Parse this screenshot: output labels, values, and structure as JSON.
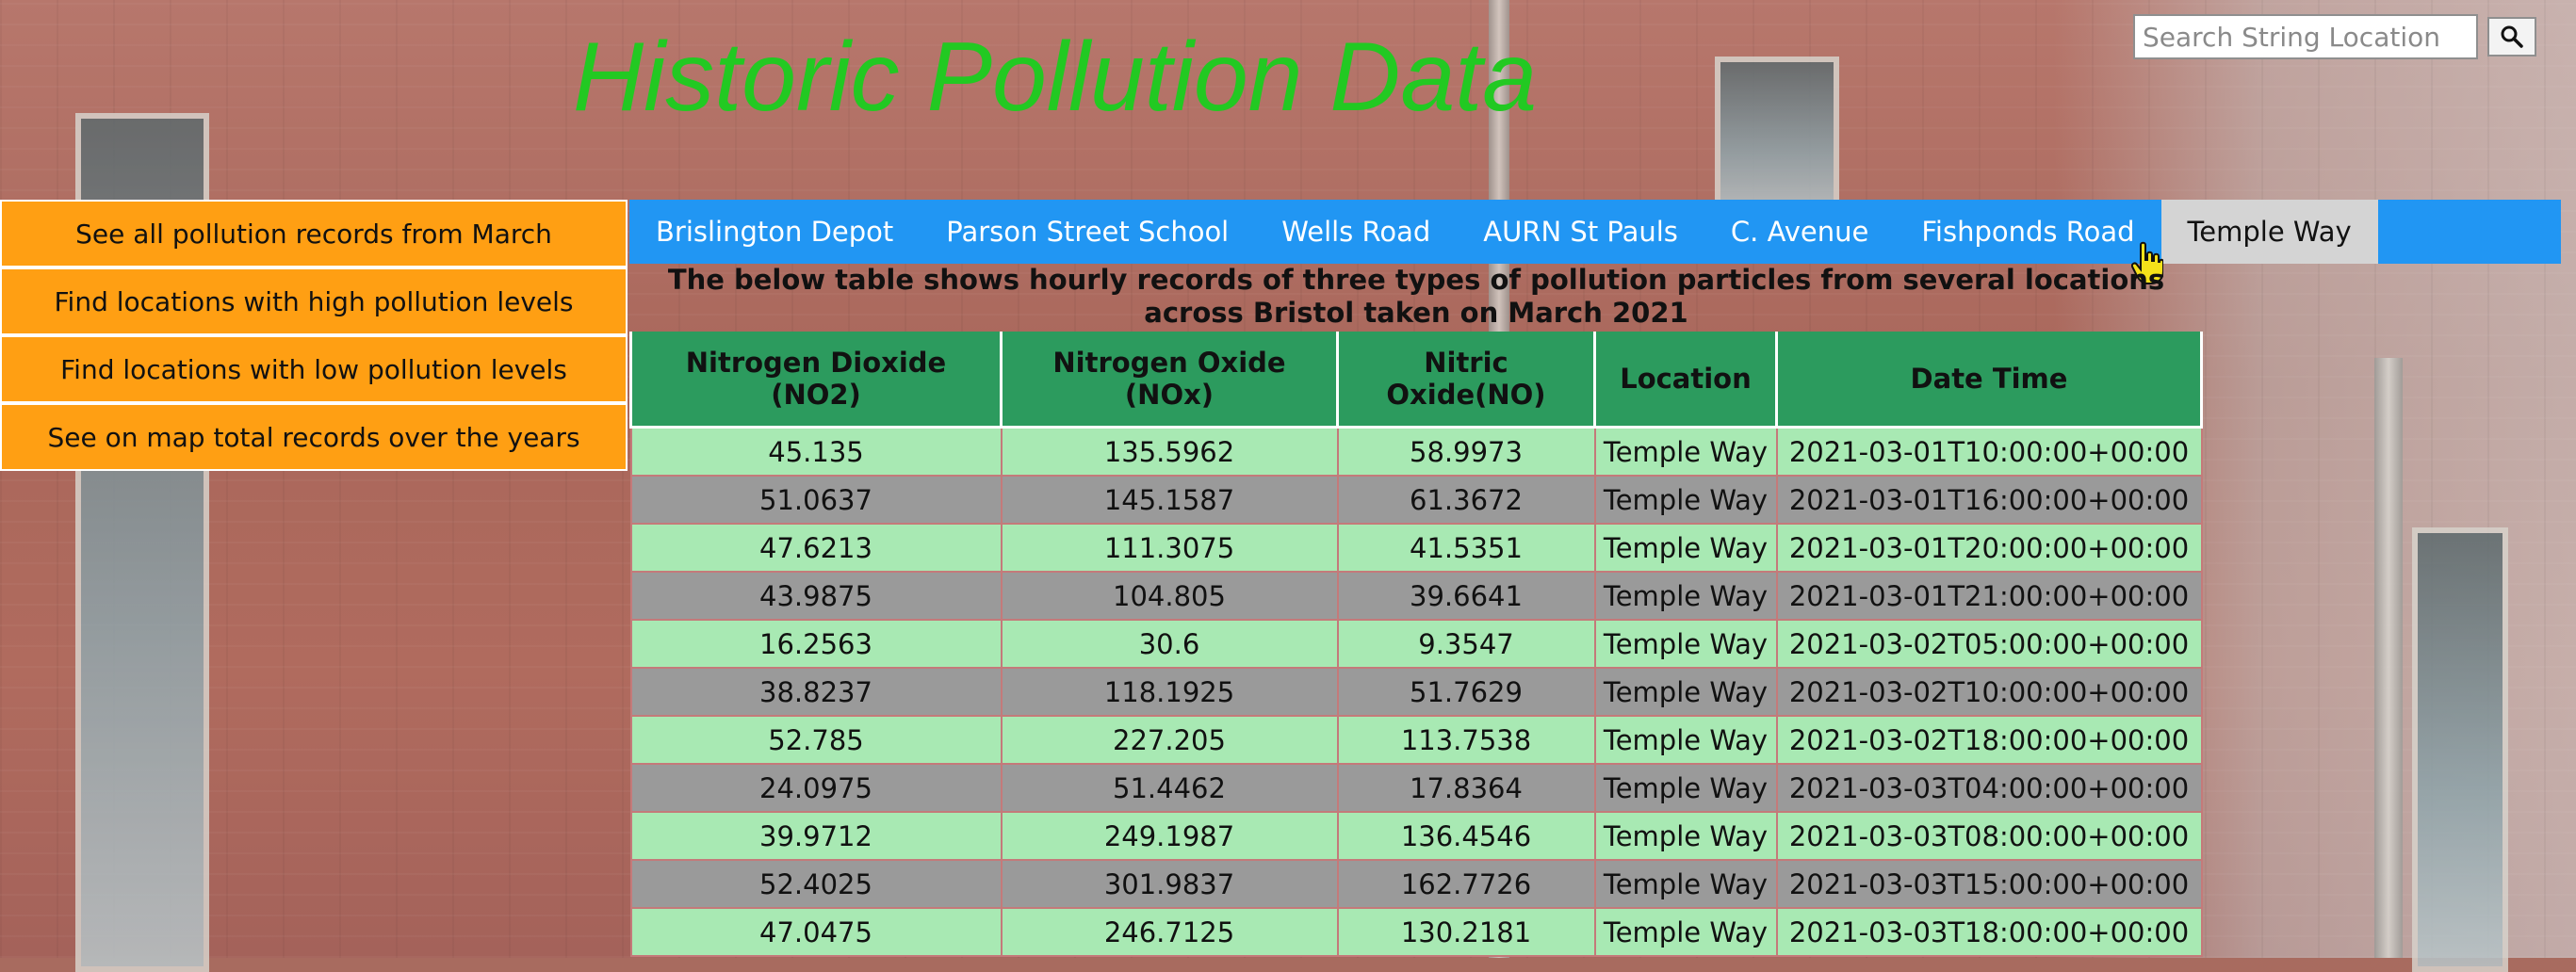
{
  "site": {
    "title": "Historic Pollution Data"
  },
  "search": {
    "placeholder": "Search String Location",
    "button_icon": "search-icon"
  },
  "side_menu": [
    {
      "label": "See all pollution records from March"
    },
    {
      "label": "Find locations with high pollution levels"
    },
    {
      "label": "Find locations with low pollution levels"
    },
    {
      "label": "See on map total records over the years"
    }
  ],
  "tabs": [
    {
      "label": "Brislington Depot",
      "active": false
    },
    {
      "label": "Parson Street School",
      "active": false
    },
    {
      "label": "Wells Road",
      "active": false
    },
    {
      "label": "AURN St Pauls",
      "active": false
    },
    {
      "label": "C. Avenue",
      "active": false
    },
    {
      "label": "Fishponds Road",
      "active": false
    },
    {
      "label": "Temple Way",
      "active": true
    }
  ],
  "description": "The below table shows hourly records of three types of pollution particles from several locations across Bristol taken on March 2021",
  "table": {
    "headers": [
      "Nitrogen Dioxide (NO2)",
      "Nitrogen Oxide (NOx)",
      "Nitric Oxide(NO)",
      "Location",
      "Date Time"
    ],
    "rows": [
      [
        "45.135",
        "135.5962",
        "58.9973",
        "Temple Way",
        "2021-03-01T10:00:00+00:00"
      ],
      [
        "51.0637",
        "145.1587",
        "61.3672",
        "Temple Way",
        "2021-03-01T16:00:00+00:00"
      ],
      [
        "47.6213",
        "111.3075",
        "41.5351",
        "Temple Way",
        "2021-03-01T20:00:00+00:00"
      ],
      [
        "43.9875",
        "104.805",
        "39.6641",
        "Temple Way",
        "2021-03-01T21:00:00+00:00"
      ],
      [
        "16.2563",
        "30.6",
        "9.3547",
        "Temple Way",
        "2021-03-02T05:00:00+00:00"
      ],
      [
        "38.8237",
        "118.1925",
        "51.7629",
        "Temple Way",
        "2021-03-02T10:00:00+00:00"
      ],
      [
        "52.785",
        "227.205",
        "113.7538",
        "Temple Way",
        "2021-03-02T18:00:00+00:00"
      ],
      [
        "24.0975",
        "51.4462",
        "17.8364",
        "Temple Way",
        "2021-03-03T04:00:00+00:00"
      ],
      [
        "39.9712",
        "249.1987",
        "136.4546",
        "Temple Way",
        "2021-03-03T08:00:00+00:00"
      ],
      [
        "52.4025",
        "301.9837",
        "162.7726",
        "Temple Way",
        "2021-03-03T15:00:00+00:00"
      ],
      [
        "47.0475",
        "246.7125",
        "130.2181",
        "Temple Way",
        "2021-03-03T18:00:00+00:00"
      ]
    ]
  },
  "colors": {
    "title": "#22c922",
    "side_menu_bg": "#ff9f13",
    "tab_bar_bg": "#2196f3",
    "tab_active_bg": "#d4d4d4",
    "table_header_bg": "#2c9b5e",
    "row_odd_bg": "#a8e9b3",
    "row_even_bg": "#9a9a9a"
  }
}
